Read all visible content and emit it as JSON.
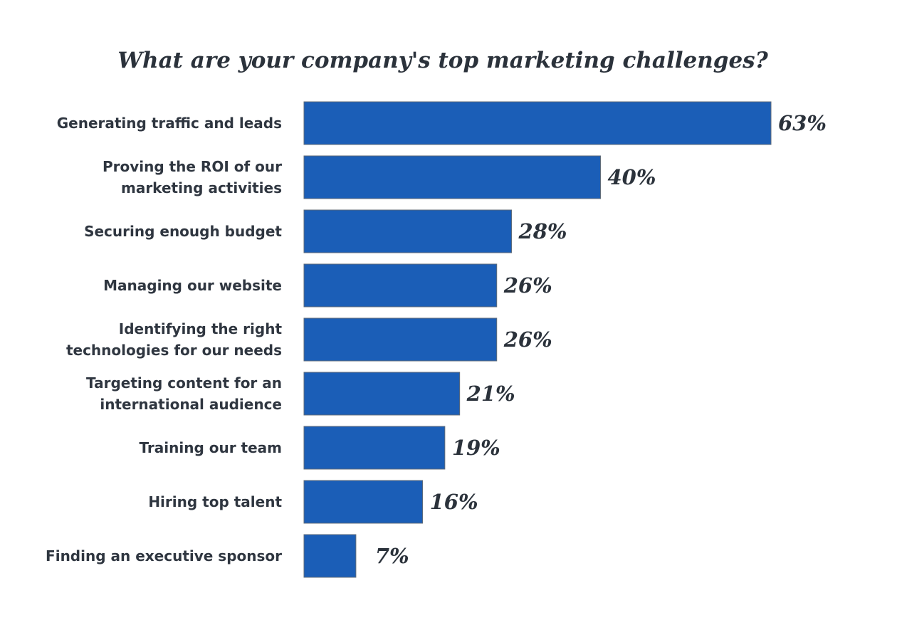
{
  "chart_data": {
    "type": "bar",
    "orientation": "horizontal",
    "title": "What are your company's top marketing challenges?",
    "xlabel": "",
    "ylabel": "",
    "xlim": [
      0,
      63
    ],
    "grid": false,
    "legend": "none",
    "categories": [
      [
        "Generating traffic and leads"
      ],
      [
        "Proving the ROI of our",
        "marketing activities"
      ],
      [
        "Securing enough budget"
      ],
      [
        "Managing our website"
      ],
      [
        "Identifying the right",
        "technologies for our needs"
      ],
      [
        "Targeting content for an",
        "international audience"
      ],
      [
        "Training our team"
      ],
      [
        "Hiring top talent"
      ],
      [
        "Finding an executive sponsor"
      ]
    ],
    "values": [
      63,
      40,
      28,
      26,
      26,
      21,
      19,
      16,
      7
    ],
    "value_labels": [
      "63%",
      "40%",
      "28%",
      "26%",
      "26%",
      "21%",
      "19%",
      "16%",
      "7%"
    ],
    "bar_color": "#1b5eb7",
    "bar_outline": "#5f6b78"
  }
}
